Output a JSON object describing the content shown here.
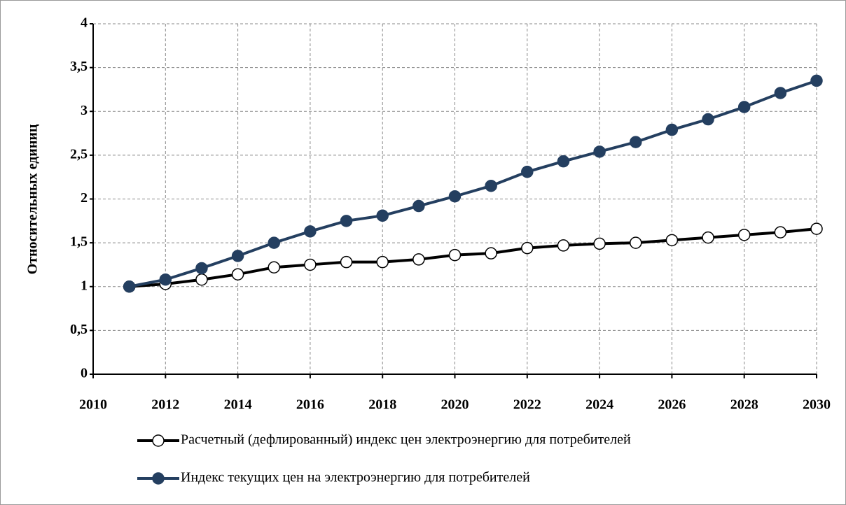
{
  "chart_data": {
    "type": "line",
    "ylabel": "Относительных единиц",
    "x": [
      2011,
      2012,
      2013,
      2014,
      2015,
      2016,
      2017,
      2018,
      2019,
      2020,
      2021,
      2022,
      2023,
      2024,
      2025,
      2026,
      2027,
      2028,
      2029,
      2030
    ],
    "series": [
      {
        "name": "Расчетный (дефлированный) индекс цен электроэнергию для потребителей",
        "color": "#000000",
        "marker_fill": "#ffffff",
        "values": [
          1.0,
          1.03,
          1.08,
          1.14,
          1.22,
          1.25,
          1.28,
          1.28,
          1.31,
          1.36,
          1.38,
          1.44,
          1.47,
          1.49,
          1.5,
          1.53,
          1.56,
          1.59,
          1.62,
          1.66
        ]
      },
      {
        "name": "Индекс текущих цен на электроэнергию для потребителей",
        "color": "#243f60",
        "marker_fill": "#243f60",
        "values": [
          1.0,
          1.08,
          1.21,
          1.35,
          1.5,
          1.63,
          1.75,
          1.81,
          1.92,
          2.03,
          2.15,
          2.31,
          2.43,
          2.54,
          2.65,
          2.79,
          2.91,
          3.05,
          3.21,
          3.35
        ]
      }
    ],
    "xlim": [
      2010,
      2030
    ],
    "xticks": [
      2010,
      2012,
      2014,
      2016,
      2018,
      2020,
      2022,
      2024,
      2026,
      2028,
      2030
    ],
    "ylim": [
      0,
      4
    ],
    "yticks": [
      0,
      {
        "value": 0.5,
        "label": "0,5"
      },
      1,
      {
        "value": 1.5,
        "label": "1,5"
      },
      2,
      {
        "value": 2.5,
        "label": "2,5"
      },
      3,
      {
        "value": 3.5,
        "label": "3,5"
      },
      4
    ],
    "grid": true,
    "legend": "bottom"
  }
}
